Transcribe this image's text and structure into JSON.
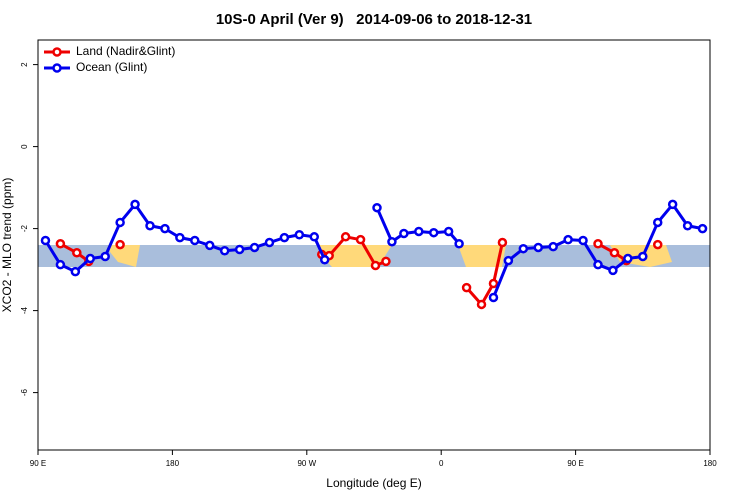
{
  "chart_data": {
    "type": "line",
    "title": "10S-0 April (Ver 9)   2014-09-06 to 2018-12-31",
    "x_label": "Longitude (deg E)",
    "y_label": "XCO2 - MLO trend (ppm)",
    "xlim": [
      90,
      540
    ],
    "ylim": [
      -7.4,
      2.6
    ],
    "xticks": [
      {
        "value": 90,
        "label": "90 E"
      },
      {
        "value": 180,
        "label": "180"
      },
      {
        "value": 270,
        "label": "90 W"
      },
      {
        "value": 360,
        "label": "0"
      },
      {
        "value": 450,
        "label": "90 E"
      },
      {
        "value": 540,
        "label": "180"
      }
    ],
    "yticks": [
      -6,
      -4,
      -2,
      0,
      2
    ],
    "legend_position": "top-left",
    "series": [
      {
        "name": "Land (Nadir&Glint)",
        "color": "#ee0000",
        "x": [
          105,
          116,
          124,
          null,
          145,
          null,
          280,
          285,
          296,
          306,
          316,
          323,
          null,
          377,
          387,
          395,
          401,
          null,
          465,
          476,
          484,
          null,
          505
        ],
        "values": [
          -2.37,
          -2.59,
          -2.8,
          null,
          -2.39,
          null,
          -2.63,
          -2.66,
          -2.2,
          -2.27,
          -2.9,
          -2.8,
          null,
          -3.44,
          -3.85,
          -3.34,
          -2.34,
          null,
          -2.37,
          -2.59,
          -2.78,
          null,
          -2.39
        ]
      },
      {
        "name": "Ocean (Glint)",
        "color": "#0000ee",
        "x": [
          95,
          105,
          115,
          125,
          135,
          145,
          155,
          165,
          175,
          185,
          195,
          205,
          215,
          225,
          235,
          245,
          255,
          265,
          275,
          282,
          null,
          317,
          327,
          335,
          345,
          355,
          365,
          372,
          null,
          395,
          405,
          415,
          425,
          435,
          445,
          455,
          465,
          475,
          485,
          495,
          505,
          515,
          525,
          535
        ],
        "values": [
          -2.29,
          -2.88,
          -3.05,
          -2.73,
          -2.68,
          -1.85,
          -1.41,
          -1.93,
          -2.0,
          -2.22,
          -2.29,
          -2.41,
          -2.54,
          -2.51,
          -2.46,
          -2.34,
          -2.22,
          -2.15,
          -2.2,
          -2.76,
          null,
          -1.49,
          -2.32,
          -2.12,
          -2.07,
          -2.1,
          -2.07,
          -2.37,
          null,
          -3.68,
          -2.78,
          -2.49,
          -2.46,
          -2.44,
          -2.27,
          -2.29,
          -2.88,
          -3.02,
          -2.73,
          -2.68,
          -1.85,
          -1.41,
          -1.93,
          -2.0
        ]
      }
    ]
  }
}
